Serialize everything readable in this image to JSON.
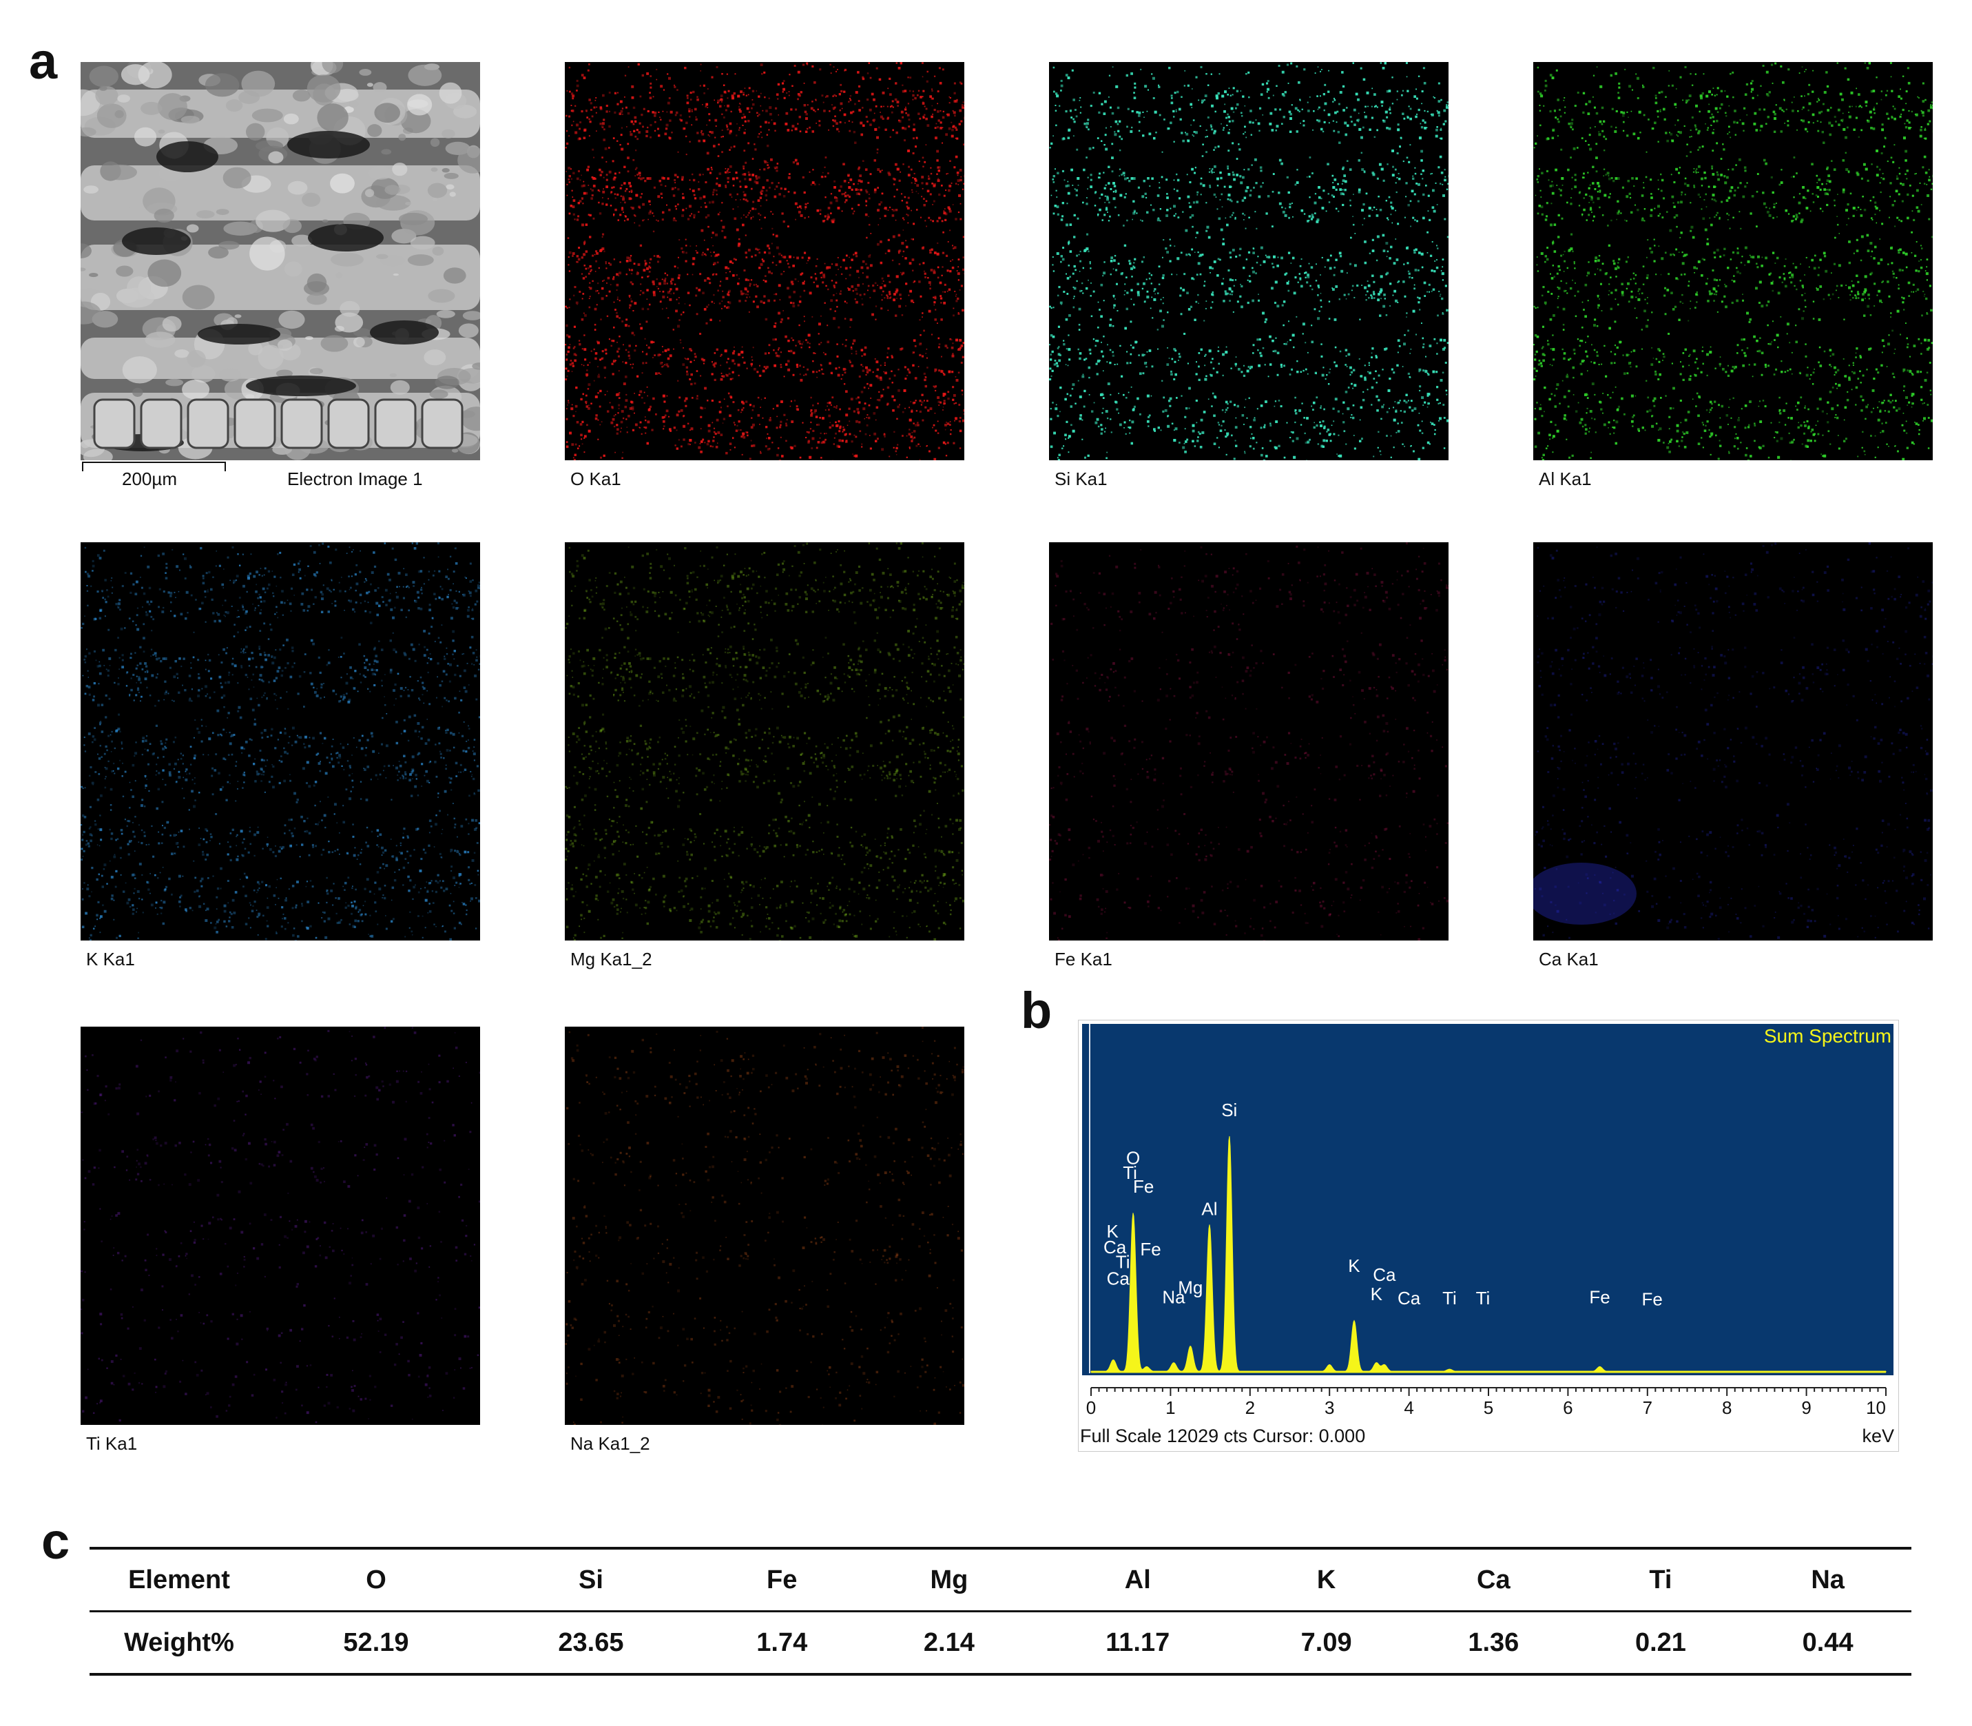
{
  "panel_labels": {
    "a": "a",
    "b": "b",
    "c": "c"
  },
  "maps": [
    {
      "id": "electron",
      "label": "Electron Image 1",
      "color": "#9a9a9a",
      "intensity": 1.0,
      "grayscale": true
    },
    {
      "id": "O",
      "label": "O Ka1",
      "color": "#e01616",
      "intensity": 0.95
    },
    {
      "id": "Si",
      "label": "Si Ka1",
      "color": "#38e0b8",
      "intensity": 0.95
    },
    {
      "id": "Al",
      "label": "Al Ka1",
      "color": "#2fd02a",
      "intensity": 0.85
    },
    {
      "id": "K",
      "label": "K Ka1",
      "color": "#2e8fd8",
      "intensity": 0.55
    },
    {
      "id": "Mg",
      "label": "Mg Ka1_2",
      "color": "#8fd81e",
      "intensity": 0.4
    },
    {
      "id": "Fe",
      "label": "Fe Ka1",
      "color": "#c0185a",
      "intensity": 0.12
    },
    {
      "id": "Ca",
      "label": "Ca Ka1",
      "color": "#2a30d8",
      "intensity": 0.12
    },
    {
      "id": "Ti",
      "label": "Ti Ka1",
      "color": "#8a2ad8",
      "intensity": 0.05
    },
    {
      "id": "Na",
      "label": "Na Ka1_2",
      "color": "#d8601e",
      "intensity": 0.1
    }
  ],
  "scale_bar": "200µm",
  "chart_data": [
    {
      "type": "line",
      "title": "Sum Spectrum",
      "xlabel": "keV",
      "xlim": [
        0,
        10
      ],
      "x_ticks": [
        "0",
        "1",
        "2",
        "3",
        "4",
        "5",
        "6",
        "7",
        "8",
        "9",
        "10"
      ],
      "footer": "Full Scale 12029 cts Cursor: 0.000",
      "colors": {
        "background": "#08386e",
        "trace": "#f5f51a",
        "title": "#f5f51a",
        "peak_label": "#ffffff"
      },
      "peaks": [
        {
          "x": 0.28,
          "y": 600
        },
        {
          "x": 0.53,
          "y": 8100
        },
        {
          "x": 0.7,
          "y": 250
        },
        {
          "x": 1.04,
          "y": 450
        },
        {
          "x": 1.25,
          "y": 1300
        },
        {
          "x": 1.49,
          "y": 7500
        },
        {
          "x": 1.74,
          "y": 12029
        },
        {
          "x": 3.0,
          "y": 350
        },
        {
          "x": 3.31,
          "y": 2600
        },
        {
          "x": 3.59,
          "y": 450
        },
        {
          "x": 3.69,
          "y": 350
        },
        {
          "x": 4.51,
          "y": 120
        },
        {
          "x": 6.4,
          "y": 250
        }
      ],
      "peak_labels": [
        {
          "text": "O",
          "x": 0.53,
          "y": 10600
        },
        {
          "text": "Ti",
          "x": 0.49,
          "y": 9850
        },
        {
          "text": "Fe",
          "x": 0.66,
          "y": 9150
        },
        {
          "text": "K",
          "x": 0.27,
          "y": 6850
        },
        {
          "text": "Ca",
          "x": 0.3,
          "y": 6050
        },
        {
          "text": "Fe",
          "x": 0.75,
          "y": 5950
        },
        {
          "text": "Ti",
          "x": 0.4,
          "y": 5300
        },
        {
          "text": "Ca",
          "x": 0.34,
          "y": 4450
        },
        {
          "text": "Mg",
          "x": 1.25,
          "y": 4000
        },
        {
          "text": "Na",
          "x": 1.04,
          "y": 3500
        },
        {
          "text": "Si",
          "x": 1.74,
          "y": 13050
        },
        {
          "text": "Al",
          "x": 1.49,
          "y": 8000
        },
        {
          "text": "K",
          "x": 3.31,
          "y": 5100
        },
        {
          "text": "Ca",
          "x": 3.69,
          "y": 4650
        },
        {
          "text": "K",
          "x": 3.59,
          "y": 3650
        },
        {
          "text": "Ca",
          "x": 4.0,
          "y": 3450
        },
        {
          "text": "Ti",
          "x": 4.51,
          "y": 3450
        },
        {
          "text": "Ti",
          "x": 4.93,
          "y": 3450
        },
        {
          "text": "Fe",
          "x": 6.4,
          "y": 3500
        },
        {
          "text": "Fe",
          "x": 7.06,
          "y": 3400
        }
      ]
    },
    {
      "type": "table",
      "columns": [
        "Element",
        "O",
        "Si",
        "Fe",
        "Mg",
        "Al",
        "K",
        "Ca",
        "Ti",
        "Na"
      ],
      "rows": [
        [
          "Weight%",
          "52.19",
          "23.65",
          "1.74",
          "2.14",
          "11.17",
          "7.09",
          "1.36",
          "0.21",
          "0.44"
        ]
      ]
    }
  ]
}
